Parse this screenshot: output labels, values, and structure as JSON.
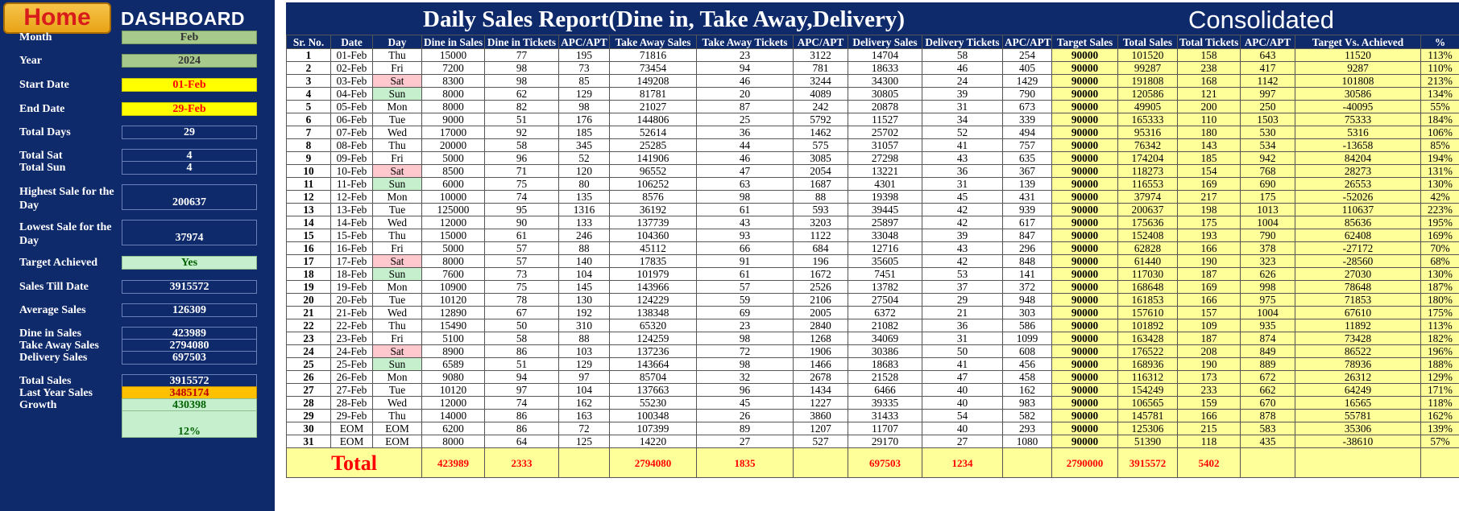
{
  "sidebar": {
    "home_label": "Home",
    "title": "DASHBOARD",
    "fields": [
      {
        "key": "month",
        "label": "Month",
        "value": "Feb",
        "style": "green"
      },
      {
        "key": "year",
        "label": "Year",
        "value": "2024",
        "style": "green"
      },
      {
        "key": "start-date",
        "label": "Start Date",
        "value": "01-Feb",
        "style": "yellow"
      },
      {
        "key": "end-date",
        "label": "End Date",
        "value": "29-Feb",
        "style": "yellow"
      },
      {
        "key": "total-days",
        "label": "Total Days",
        "value": "29",
        "style": "plain"
      },
      {
        "key": "total-sat",
        "label": "Total Sat",
        "value": "4",
        "style": "plain"
      },
      {
        "key": "total-sun",
        "label": "Total Sun",
        "value": "4",
        "style": "plain"
      },
      {
        "key": "highest-sale",
        "label": "Highest Sale for the Day",
        "value": "200637",
        "style": "plain"
      },
      {
        "key": "lowest-sale",
        "label": "Lowest Sale for the Day",
        "value": "37974",
        "style": "plain"
      },
      {
        "key": "target-achieved",
        "label": "Target Achieved",
        "value": "Yes",
        "style": "mint"
      },
      {
        "key": "sales-till-date",
        "label": "Sales Till Date",
        "value": "3915572",
        "style": "plain"
      },
      {
        "key": "average-sales",
        "label": "Average Sales",
        "value": "126309",
        "style": "plain"
      },
      {
        "key": "dine-in-sales",
        "label": "Dine in Sales",
        "value": "423989",
        "style": "plain"
      },
      {
        "key": "take-away-sales",
        "label": "Take Away Sales",
        "value": "2794080",
        "style": "plain"
      },
      {
        "key": "delivery-sales",
        "label": "Delivery Sales",
        "value": "697503",
        "style": "plain"
      },
      {
        "key": "total-sales",
        "label": "Total Sales",
        "value": "3915572",
        "style": "plain"
      },
      {
        "key": "last-year-sales",
        "label": "Last Year Sales",
        "value": "3485174",
        "style": "orange"
      },
      {
        "key": "growth",
        "label": "Growth",
        "value": "430398",
        "style": "mint"
      },
      {
        "key": "growth-percent",
        "label": "",
        "value": "12%",
        "style": "mint"
      }
    ]
  },
  "report": {
    "title": "Daily Sales Report(Dine in, Take Away,Delivery)",
    "consolidated_label": "Consolidated",
    "headers": [
      "Sr. No.",
      "Date",
      "Day",
      "Dine in Sales",
      "Dine in Tickets",
      "APC/APT",
      "Take Away Sales",
      "Take Away Tickets",
      "APC/APT",
      "Delivery Sales",
      "Delivery Tickets",
      "APC/APT",
      "Target Sales",
      "Total Sales",
      "Total Tickets",
      "APC/APT",
      "Target Vs. Achieved",
      "%"
    ],
    "rows": [
      [
        "1",
        "01-Feb",
        "Thu",
        "15000",
        "77",
        "195",
        "71816",
        "23",
        "3122",
        "14704",
        "58",
        "254",
        "90000",
        "101520",
        "158",
        "643",
        "11520",
        "113%"
      ],
      [
        "2",
        "02-Feb",
        "Fri",
        "7200",
        "98",
        "73",
        "73454",
        "94",
        "781",
        "18633",
        "46",
        "405",
        "90000",
        "99287",
        "238",
        "417",
        "9287",
        "110%"
      ],
      [
        "3",
        "03-Feb",
        "Sat",
        "8300",
        "98",
        "85",
        "149208",
        "46",
        "3244",
        "34300",
        "24",
        "1429",
        "90000",
        "191808",
        "168",
        "1142",
        "101808",
        "213%"
      ],
      [
        "4",
        "04-Feb",
        "Sun",
        "8000",
        "62",
        "129",
        "81781",
        "20",
        "4089",
        "30805",
        "39",
        "790",
        "90000",
        "120586",
        "121",
        "997",
        "30586",
        "134%"
      ],
      [
        "5",
        "05-Feb",
        "Mon",
        "8000",
        "82",
        "98",
        "21027",
        "87",
        "242",
        "20878",
        "31",
        "673",
        "90000",
        "49905",
        "200",
        "250",
        "-40095",
        "55%"
      ],
      [
        "6",
        "06-Feb",
        "Tue",
        "9000",
        "51",
        "176",
        "144806",
        "25",
        "5792",
        "11527",
        "34",
        "339",
        "90000",
        "165333",
        "110",
        "1503",
        "75333",
        "184%"
      ],
      [
        "7",
        "07-Feb",
        "Wed",
        "17000",
        "92",
        "185",
        "52614",
        "36",
        "1462",
        "25702",
        "52",
        "494",
        "90000",
        "95316",
        "180",
        "530",
        "5316",
        "106%"
      ],
      [
        "8",
        "08-Feb",
        "Thu",
        "20000",
        "58",
        "345",
        "25285",
        "44",
        "575",
        "31057",
        "41",
        "757",
        "90000",
        "76342",
        "143",
        "534",
        "-13658",
        "85%"
      ],
      [
        "9",
        "09-Feb",
        "Fri",
        "5000",
        "96",
        "52",
        "141906",
        "46",
        "3085",
        "27298",
        "43",
        "635",
        "90000",
        "174204",
        "185",
        "942",
        "84204",
        "194%"
      ],
      [
        "10",
        "10-Feb",
        "Sat",
        "8500",
        "71",
        "120",
        "96552",
        "47",
        "2054",
        "13221",
        "36",
        "367",
        "90000",
        "118273",
        "154",
        "768",
        "28273",
        "131%"
      ],
      [
        "11",
        "11-Feb",
        "Sun",
        "6000",
        "75",
        "80",
        "106252",
        "63",
        "1687",
        "4301",
        "31",
        "139",
        "90000",
        "116553",
        "169",
        "690",
        "26553",
        "130%"
      ],
      [
        "12",
        "12-Feb",
        "Mon",
        "10000",
        "74",
        "135",
        "8576",
        "98",
        "88",
        "19398",
        "45",
        "431",
        "90000",
        "37974",
        "217",
        "175",
        "-52026",
        "42%"
      ],
      [
        "13",
        "13-Feb",
        "Tue",
        "125000",
        "95",
        "1316",
        "36192",
        "61",
        "593",
        "39445",
        "42",
        "939",
        "90000",
        "200637",
        "198",
        "1013",
        "110637",
        "223%"
      ],
      [
        "14",
        "14-Feb",
        "Wed",
        "12000",
        "90",
        "133",
        "137739",
        "43",
        "3203",
        "25897",
        "42",
        "617",
        "90000",
        "175636",
        "175",
        "1004",
        "85636",
        "195%"
      ],
      [
        "15",
        "15-Feb",
        "Thu",
        "15000",
        "61",
        "246",
        "104360",
        "93",
        "1122",
        "33048",
        "39",
        "847",
        "90000",
        "152408",
        "193",
        "790",
        "62408",
        "169%"
      ],
      [
        "16",
        "16-Feb",
        "Fri",
        "5000",
        "57",
        "88",
        "45112",
        "66",
        "684",
        "12716",
        "43",
        "296",
        "90000",
        "62828",
        "166",
        "378",
        "-27172",
        "70%"
      ],
      [
        "17",
        "17-Feb",
        "Sat",
        "8000",
        "57",
        "140",
        "17835",
        "91",
        "196",
        "35605",
        "42",
        "848",
        "90000",
        "61440",
        "190",
        "323",
        "-28560",
        "68%"
      ],
      [
        "18",
        "18-Feb",
        "Sun",
        "7600",
        "73",
        "104",
        "101979",
        "61",
        "1672",
        "7451",
        "53",
        "141",
        "90000",
        "117030",
        "187",
        "626",
        "27030",
        "130%"
      ],
      [
        "19",
        "19-Feb",
        "Mon",
        "10900",
        "75",
        "145",
        "143966",
        "57",
        "2526",
        "13782",
        "37",
        "372",
        "90000",
        "168648",
        "169",
        "998",
        "78648",
        "187%"
      ],
      [
        "20",
        "20-Feb",
        "Tue",
        "10120",
        "78",
        "130",
        "124229",
        "59",
        "2106",
        "27504",
        "29",
        "948",
        "90000",
        "161853",
        "166",
        "975",
        "71853",
        "180%"
      ],
      [
        "21",
        "21-Feb",
        "Wed",
        "12890",
        "67",
        "192",
        "138348",
        "69",
        "2005",
        "6372",
        "21",
        "303",
        "90000",
        "157610",
        "157",
        "1004",
        "67610",
        "175%"
      ],
      [
        "22",
        "22-Feb",
        "Thu",
        "15490",
        "50",
        "310",
        "65320",
        "23",
        "2840",
        "21082",
        "36",
        "586",
        "90000",
        "101892",
        "109",
        "935",
        "11892",
        "113%"
      ],
      [
        "23",
        "23-Feb",
        "Fri",
        "5100",
        "58",
        "88",
        "124259",
        "98",
        "1268",
        "34069",
        "31",
        "1099",
        "90000",
        "163428",
        "187",
        "874",
        "73428",
        "182%"
      ],
      [
        "24",
        "24-Feb",
        "Sat",
        "8900",
        "86",
        "103",
        "137236",
        "72",
        "1906",
        "30386",
        "50",
        "608",
        "90000",
        "176522",
        "208",
        "849",
        "86522",
        "196%"
      ],
      [
        "25",
        "25-Feb",
        "Sun",
        "6589",
        "51",
        "129",
        "143664",
        "98",
        "1466",
        "18683",
        "41",
        "456",
        "90000",
        "168936",
        "190",
        "889",
        "78936",
        "188%"
      ],
      [
        "26",
        "26-Feb",
        "Mon",
        "9080",
        "94",
        "97",
        "85704",
        "32",
        "2678",
        "21528",
        "47",
        "458",
        "90000",
        "116312",
        "173",
        "672",
        "26312",
        "129%"
      ],
      [
        "27",
        "27-Feb",
        "Tue",
        "10120",
        "97",
        "104",
        "137663",
        "96",
        "1434",
        "6466",
        "40",
        "162",
        "90000",
        "154249",
        "233",
        "662",
        "64249",
        "171%"
      ],
      [
        "28",
        "28-Feb",
        "Wed",
        "12000",
        "74",
        "162",
        "55230",
        "45",
        "1227",
        "39335",
        "40",
        "983",
        "90000",
        "106565",
        "159",
        "670",
        "16565",
        "118%"
      ],
      [
        "29",
        "29-Feb",
        "Thu",
        "14000",
        "86",
        "163",
        "100348",
        "26",
        "3860",
        "31433",
        "54",
        "582",
        "90000",
        "145781",
        "166",
        "878",
        "55781",
        "162%"
      ],
      [
        "30",
        "EOM",
        "EOM",
        "6200",
        "86",
        "72",
        "107399",
        "89",
        "1207",
        "11707",
        "40",
        "293",
        "90000",
        "125306",
        "215",
        "583",
        "35306",
        "139%"
      ],
      [
        "31",
        "EOM",
        "EOM",
        "8000",
        "64",
        "125",
        "14220",
        "27",
        "527",
        "29170",
        "27",
        "1080",
        "90000",
        "51390",
        "118",
        "435",
        "-38610",
        "57%"
      ]
    ],
    "total_row": [
      "Total",
      "",
      "",
      "423989",
      "2333",
      "",
      "2794080",
      "1835",
      "",
      "697503",
      "1234",
      "",
      "2790000",
      "3915572",
      "5402",
      "",
      "",
      ""
    ]
  },
  "colors": {
    "navy": "#0f2a6b",
    "dine_header": "#92d050",
    "take_away_header": "#ff0000",
    "delivery_header": "#000000",
    "cell_yellow": "#ffff99",
    "accent_red": "#ff0000"
  }
}
